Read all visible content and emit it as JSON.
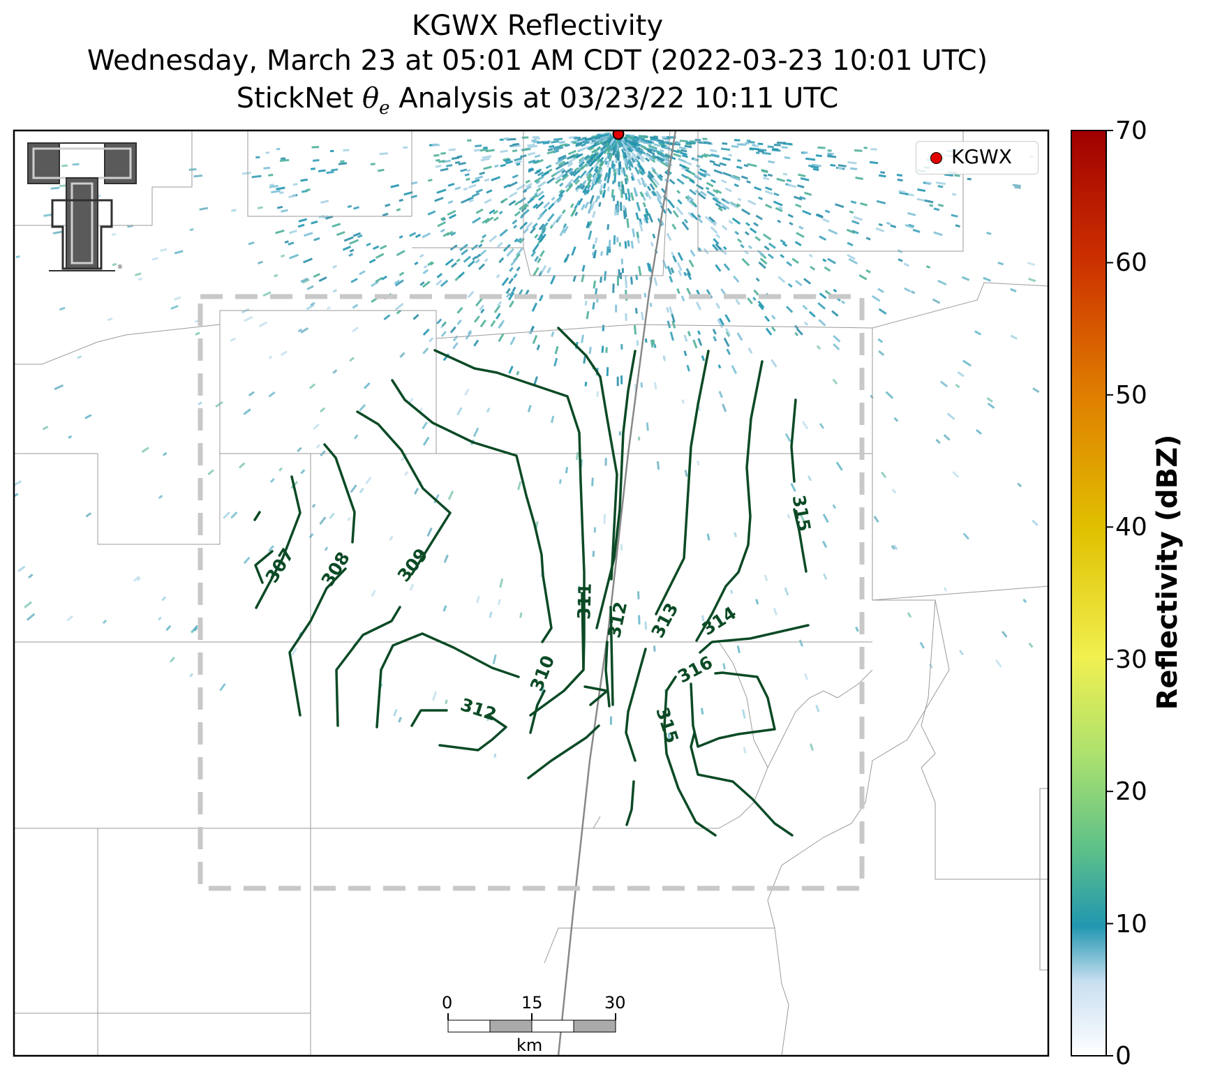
{
  "title": {
    "line1": "KGWX Reflectivity",
    "line2": "Wednesday, March 23 at 05:01 AM CDT (2022-03-23 10:01 UTC)",
    "line3_prefix": "StickNet ",
    "line3_symbol": "θ",
    "line3_subscript": "e",
    "line3_suffix": " Analysis at 03/23/22 10:11 UTC"
  },
  "legend": {
    "label": "KGWX",
    "marker_color": "#e00000"
  },
  "colorbar": {
    "label": "Reflectivity (dBZ)",
    "ticks": [
      "70",
      "60",
      "50",
      "40",
      "30",
      "20",
      "10",
      "0"
    ],
    "min": 0,
    "max": 70,
    "colors": [
      "#ffffff",
      "#c8dff0",
      "#2196b0",
      "#5bbf8a",
      "#a8e070",
      "#f0f050",
      "#e0c000",
      "#e08000",
      "#cc3000",
      "#a00000"
    ]
  },
  "scalebar": {
    "labels": [
      "0",
      "15",
      "30"
    ],
    "unit": "km"
  },
  "contours": {
    "color": "#0b4a25",
    "labels": [
      "307",
      "308",
      "309",
      "310",
      "311",
      "312",
      "313",
      "314",
      "315",
      "316",
      "312",
      "315"
    ]
  },
  "logo": {
    "name": "Texas Tech Double T"
  }
}
